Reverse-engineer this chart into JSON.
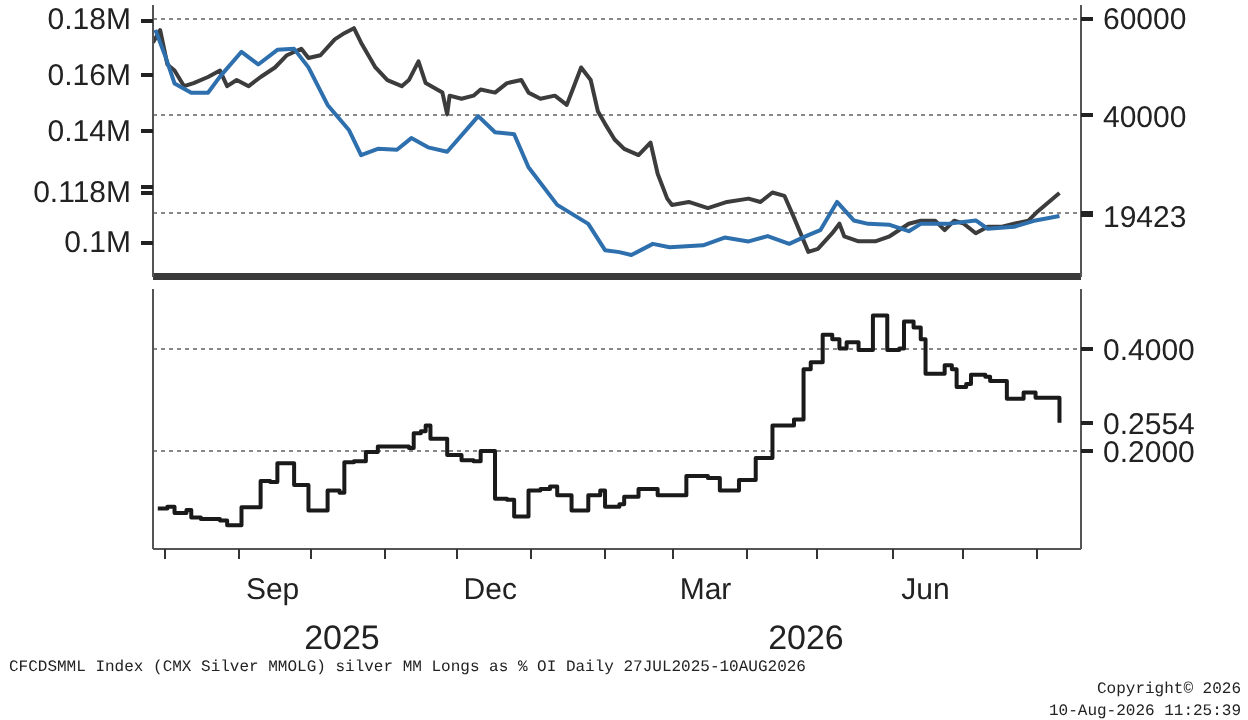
{
  "chart_data": [
    {
      "type": "line",
      "xlim": [
        "2025-07-27",
        "2026-08-19"
      ],
      "ylim": [
        87900,
        185400
      ],
      "yticks": [
        {
          "value": 100000,
          "label": "0.1M"
        },
        {
          "value": 118000,
          "label": "0.118M"
        },
        {
          "value": 120000,
          "label": null
        },
        {
          "value": 140000,
          "label": "0.14M"
        },
        {
          "value": 160000,
          "label": "0.16M"
        },
        {
          "value": 180000,
          "label": "0.18M"
        }
      ],
      "y2lim": [
        6900,
        62700
      ],
      "y2ticks": [
        {
          "value": 20000,
          "label": null
        },
        40000,
        60000
      ],
      "grid": "y2",
      "tick_labels": "y",
      "series": [
        {
          "color": "#3c3c3c",
          "x": [
            "2025-07-27",
            "2025-07-30",
            "2025-08-02",
            "2025-08-05",
            "2025-08-09",
            "2025-08-13",
            "2025-08-19",
            "2025-08-24",
            "2025-08-27",
            "2025-08-31",
            "2025-09-05",
            "2025-09-10",
            "2025-09-16",
            "2025-09-21",
            "2025-09-27",
            "2025-09-30",
            "2025-10-05",
            "2025-10-11",
            "2025-10-15",
            "2025-10-19",
            "2025-10-22",
            "2025-10-28",
            "2025-11-02",
            "2025-11-08",
            "2025-11-11",
            "2025-11-15",
            "2025-11-18",
            "2025-11-25",
            "2025-11-27",
            "2025-11-28",
            "2025-12-03",
            "2025-12-08",
            "2025-12-11",
            "2025-12-17",
            "2025-12-22",
            "2025-12-28",
            "2025-12-31",
            "2026-01-05",
            "2026-01-11",
            "2026-01-16",
            "2026-01-19",
            "2026-01-22",
            "2026-01-26",
            "2026-01-29",
            "2026-02-01",
            "2026-02-05",
            "2026-02-09",
            "2026-02-15",
            "2026-02-20",
            "2026-02-23",
            "2026-02-27",
            "2026-03-01",
            "2026-03-08",
            "2026-03-16",
            "2026-03-24",
            "2026-04-02",
            "2026-04-07",
            "2026-04-12",
            "2026-04-17",
            "2026-04-21",
            "2026-04-27",
            "2026-05-01",
            "2026-05-07",
            "2026-05-10",
            "2026-05-12",
            "2026-05-18",
            "2026-05-25",
            "2026-05-31",
            "2026-06-08",
            "2026-06-13",
            "2026-06-19",
            "2026-06-23",
            "2026-06-27",
            "2026-07-01",
            "2026-07-06",
            "2026-07-11",
            "2026-07-17",
            "2026-07-22",
            "2026-07-28",
            "2026-08-01",
            "2026-08-10"
          ],
          "values": [
            172000,
            176400,
            164100,
            161900,
            156300,
            157400,
            159600,
            161900,
            156300,
            158500,
            156300,
            159600,
            163000,
            167400,
            169700,
            166400,
            167400,
            173100,
            175300,
            177100,
            171900,
            163000,
            158500,
            156300,
            158500,
            165200,
            157400,
            154000,
            146200,
            152900,
            151800,
            152900,
            155100,
            154000,
            157400,
            158500,
            154000,
            151800,
            152900,
            149600,
            156300,
            163000,
            158500,
            147300,
            142800,
            137200,
            133800,
            131600,
            136100,
            124900,
            116000,
            113700,
            114800,
            112600,
            114800,
            116000,
            114800,
            118200,
            117000,
            109200,
            96900,
            98000,
            103600,
            107000,
            102500,
            100700,
            100700,
            102500,
            107000,
            108100,
            108100,
            104700,
            108100,
            107000,
            103600,
            105900,
            105900,
            107000,
            108100,
            111500,
            118000
          ]
        },
        {
          "axis": "y2",
          "color": "#2e6fad",
          "x": [
            "2025-07-28",
            "2025-08-01",
            "2025-08-05",
            "2025-08-12",
            "2025-08-19",
            "2025-08-24",
            "2025-09-02",
            "2025-09-09",
            "2025-09-17",
            "2025-09-24",
            "2025-09-30",
            "2025-10-08",
            "2025-10-17",
            "2025-10-22",
            "2025-10-29",
            "2025-11-06",
            "2025-11-12",
            "2025-11-19",
            "2025-11-27",
            "2025-12-10",
            "2025-12-17",
            "2025-12-25",
            "2025-12-31",
            "2026-01-12",
            "2026-01-25",
            "2026-02-01",
            "2026-02-07",
            "2026-02-12",
            "2026-02-21",
            "2026-02-28",
            "2026-03-14",
            "2026-03-23",
            "2026-04-02",
            "2026-04-10",
            "2026-04-19",
            "2026-04-27",
            "2026-05-02",
            "2026-05-09",
            "2026-05-16",
            "2026-05-22",
            "2026-05-31",
            "2026-06-08",
            "2026-06-13",
            "2026-06-24",
            "2026-07-06",
            "2026-07-11",
            "2026-07-22",
            "2026-07-31",
            "2026-08-10"
          ],
          "values": [
            57600,
            52400,
            46600,
            44700,
            44700,
            48000,
            53100,
            50500,
            53500,
            53700,
            49900,
            42200,
            37000,
            31900,
            33200,
            33000,
            35400,
            33500,
            32600,
            39900,
            36600,
            36200,
            29400,
            21700,
            17800,
            12400,
            12000,
            11400,
            13700,
            13000,
            13400,
            15000,
            14200,
            15300,
            13700,
            15500,
            16500,
            22300,
            18500,
            17800,
            17600,
            16300,
            17800,
            17800,
            18500,
            16800,
            17200,
            18500,
            19423
          ],
          "value_labels": [
            null,
            null,
            null,
            null,
            null,
            null,
            null,
            null,
            null,
            null,
            null,
            null,
            null,
            null,
            null,
            null,
            null,
            null,
            null,
            null,
            null,
            null,
            null,
            null,
            null,
            null,
            null,
            null,
            null,
            null,
            null,
            null,
            null,
            null,
            null,
            null,
            null,
            null,
            null,
            null,
            null,
            null,
            null,
            null,
            null,
            null,
            null,
            null,
            "19423"
          ]
        }
      ]
    },
    {
      "type": "step",
      "xlim": [
        "2025-07-27",
        "2026-08-19"
      ],
      "xticks": [
        {
          "value": "2025-08-01",
          "label": null
        },
        {
          "value": "2025-09-01",
          "label": null
        },
        {
          "value": "2025-10-01",
          "label": null
        },
        {
          "value": "2025-11-01",
          "label": null
        },
        {
          "value": "2025-12-01",
          "label": null
        },
        {
          "value": "2026-01-01",
          "label": null
        },
        {
          "value": "2026-02-01",
          "label": null
        },
        {
          "value": "2026-03-01",
          "label": null
        },
        {
          "value": "2026-04-01",
          "label": null
        },
        {
          "value": "2026-05-01",
          "label": null
        },
        {
          "value": "2026-06-01",
          "label": null
        },
        {
          "value": "2026-07-01",
          "label": null
        },
        {
          "value": "2026-08-01",
          "label": null
        },
        {
          "value": "2025-09-15",
          "label": "Sep"
        },
        {
          "value": "2025-12-15",
          "label": "Dec"
        },
        {
          "value": "2026-03-15",
          "label": "Mar"
        },
        {
          "value": "2026-06-15",
          "label": "Jun"
        }
      ],
      "y2lim": [
        0.007,
        0.519
      ],
      "y2ticks": [
        {
          "value": 0.2,
          "label": "0.2000"
        },
        {
          "value": 0.4,
          "label": "0.4000"
        }
      ],
      "grid": "y2",
      "series": [
        {
          "axis": "y2",
          "color": "#1a1a1a",
          "x": [
            "2025-07-29",
            "2025-08-02",
            "2025-08-05",
            "2025-08-10",
            "2025-08-12",
            "2025-08-16",
            "2025-08-24",
            "2025-08-27",
            "2025-09-02",
            "2025-09-10",
            "2025-09-14",
            "2025-09-17",
            "2025-09-24",
            "2025-09-30",
            "2025-10-08",
            "2025-10-13",
            "2025-10-15",
            "2025-10-19",
            "2025-10-24",
            "2025-10-29",
            "2025-11-11",
            "2025-11-13",
            "2025-11-16",
            "2025-11-18",
            "2025-11-20",
            "2025-11-27",
            "2025-12-03",
            "2025-12-08",
            "2025-12-11",
            "2025-12-17",
            "2025-12-22",
            "2025-12-25",
            "2025-12-31",
            "2026-01-05",
            "2026-01-09",
            "2026-01-12",
            "2026-01-18",
            "2026-01-25",
            "2026-01-30",
            "2026-02-01",
            "2026-02-07",
            "2026-02-09",
            "2026-02-15",
            "2026-02-23",
            "2026-03-07",
            "2026-03-16",
            "2026-03-21",
            "2026-03-29",
            "2026-04-05",
            "2026-04-12",
            "2026-04-21",
            "2026-04-25",
            "2026-04-28",
            "2026-05-03",
            "2026-05-07",
            "2026-05-10",
            "2026-05-13",
            "2026-05-18",
            "2026-05-24",
            "2026-05-30",
            "2026-06-04",
            "2026-06-06",
            "2026-06-10",
            "2026-06-13",
            "2026-06-15",
            "2026-06-23",
            "2026-06-26",
            "2026-06-28",
            "2026-07-02",
            "2026-07-04",
            "2026-07-10",
            "2026-07-12",
            "2026-07-19",
            "2026-07-26",
            "2026-07-31",
            "2026-08-10"
          ],
          "values": [
            0.087,
            0.09,
            0.078,
            0.084,
            0.069,
            0.066,
            0.063,
            0.054,
            0.089,
            0.141,
            0.139,
            0.176,
            0.133,
            0.083,
            0.122,
            0.118,
            0.178,
            0.18,
            0.198,
            0.209,
            0.206,
            0.235,
            0.239,
            0.25,
            0.224,
            0.192,
            0.182,
            0.18,
            0.2,
            0.106,
            0.104,
            0.071,
            0.122,
            0.125,
            0.13,
            0.113,
            0.083,
            0.113,
            0.122,
            0.09,
            0.095,
            0.11,
            0.125,
            0.113,
            0.151,
            0.147,
            0.122,
            0.143,
            0.186,
            0.25,
            0.262,
            0.361,
            0.375,
            0.429,
            0.42,
            0.402,
            0.414,
            0.399,
            0.467,
            0.399,
            0.402,
            0.455,
            0.443,
            0.42,
            0.352,
            0.369,
            0.361,
            0.326,
            0.332,
            0.35,
            0.346,
            0.338,
            0.303,
            0.315,
            0.305,
            0.2554
          ],
          "value_labels": [
            null,
            null,
            null,
            null,
            null,
            null,
            null,
            null,
            null,
            null,
            null,
            null,
            null,
            null,
            null,
            null,
            null,
            null,
            null,
            null,
            null,
            null,
            null,
            null,
            null,
            null,
            null,
            null,
            null,
            null,
            null,
            null,
            null,
            null,
            null,
            null,
            null,
            null,
            null,
            null,
            null,
            null,
            null,
            null,
            null,
            null,
            null,
            null,
            null,
            null,
            null,
            null,
            null,
            null,
            null,
            null,
            null,
            null,
            null,
            null,
            null,
            null,
            null,
            null,
            null,
            null,
            null,
            null,
            null,
            null,
            null,
            null,
            null,
            null,
            null,
            "0.2554"
          ]
        }
      ],
      "annotations": [
        "2025",
        "2026",
        "CFCDSMML Index (CMX Silver MMOLG) silver MM Longs as % OI Daily 27JUL2025-10AUG2026",
        "Copyright© 2026",
        "10-Aug-2026 11:25:39"
      ]
    }
  ]
}
